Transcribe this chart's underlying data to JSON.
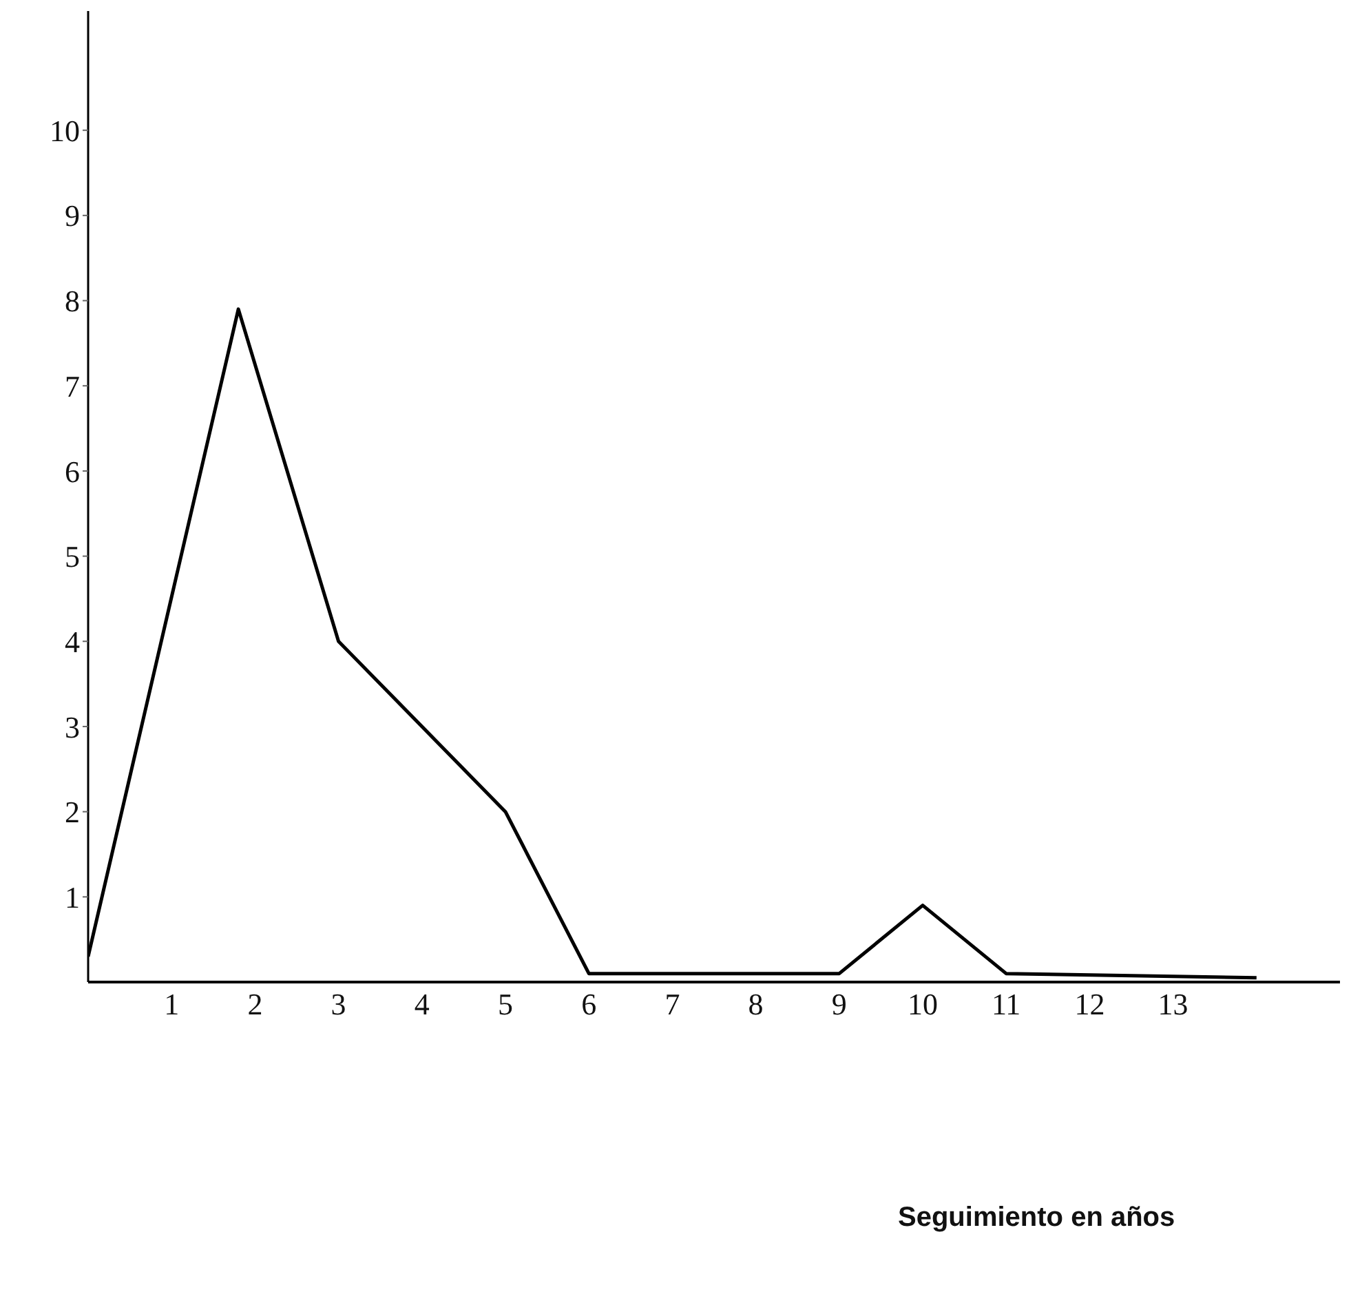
{
  "chart_data": {
    "type": "line",
    "annotations": [
      "Seguimiento en años"
    ],
    "x": [
      0,
      1.8,
      3,
      5,
      6,
      9,
      10,
      11,
      14
    ],
    "values": [
      0.3,
      7.9,
      4,
      2,
      0.1,
      0.1,
      0.9,
      0.1,
      0.05
    ],
    "color": "#000000",
    "marker": "none",
    "line_style": "solid",
    "grid": false,
    "legend": false,
    "xlim": [
      0,
      15
    ],
    "xticks": [
      1,
      2,
      3,
      4,
      5,
      6,
      7,
      8,
      9,
      10,
      11,
      12,
      13
    ],
    "ylim": [
      0,
      11.4
    ],
    "yticks": [
      1,
      2,
      3,
      4,
      5,
      6,
      7,
      8,
      9,
      10
    ]
  }
}
